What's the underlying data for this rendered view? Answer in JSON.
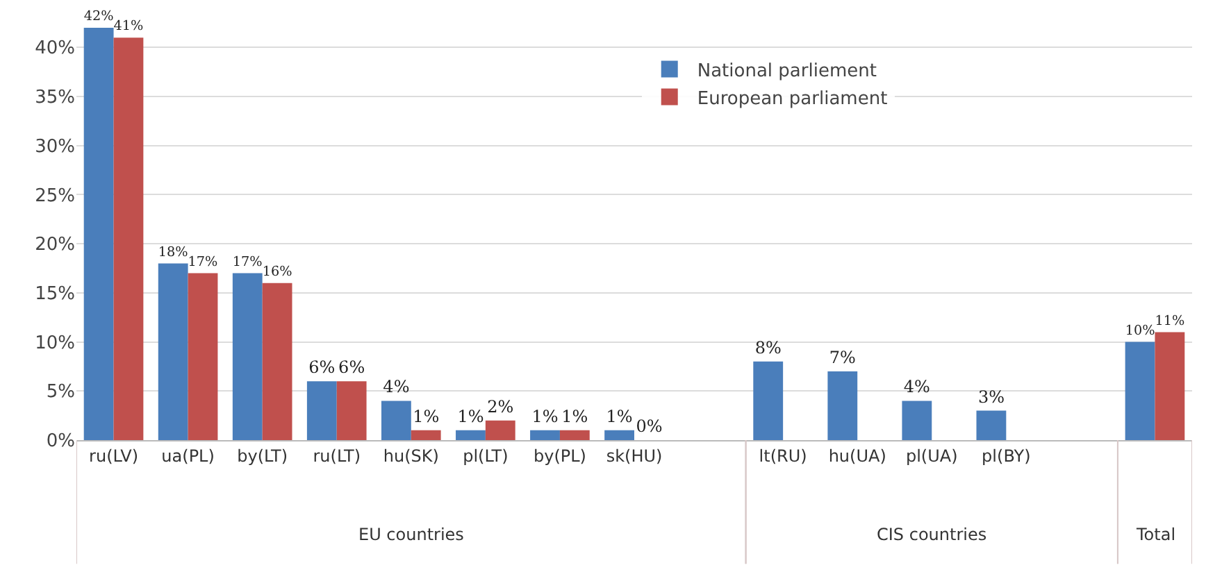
{
  "chart_data": {
    "type": "bar",
    "categories": [
      "ru(LV)",
      "ua(PL)",
      "by(LT)",
      "ru(LT)",
      "hu(SK)",
      "pl(LT)",
      "by(PL)",
      "sk(HU)",
      null,
      "lt(RU)",
      "hu(UA)",
      "pl(UA)",
      "pl(BY)",
      null,
      null
    ],
    "series": [
      {
        "name": "National parliement",
        "color": "#4a7ebb",
        "values": [
          42,
          18,
          17,
          6,
          4,
          1,
          1,
          1,
          null,
          8,
          7,
          4,
          3,
          null,
          10
        ],
        "value_labels": [
          "42%",
          "18%",
          "17%",
          "6%",
          "4%",
          "1%",
          "1%",
          "1%",
          null,
          "8%",
          "7%",
          "4%",
          "3%",
          null,
          "10%"
        ]
      },
      {
        "name": "European parliament",
        "color": "#c0504d",
        "values": [
          41,
          17,
          16,
          6,
          1,
          2,
          1,
          0,
          null,
          null,
          null,
          null,
          null,
          null,
          11
        ],
        "value_labels": [
          "41%",
          "17%",
          "16%",
          "6%",
          "1%",
          "2%",
          "1%",
          "0%",
          null,
          null,
          null,
          null,
          null,
          null,
          "11%"
        ]
      }
    ],
    "ylim": [
      0,
      42
    ],
    "yticks": [
      {
        "value": 0,
        "label": "0%"
      },
      {
        "value": 5,
        "label": "5%"
      },
      {
        "value": 10,
        "label": "10%"
      },
      {
        "value": 15,
        "label": "15%"
      },
      {
        "value": 20,
        "label": "20%"
      },
      {
        "value": 25,
        "label": "25%"
      },
      {
        "value": 30,
        "label": "30%"
      },
      {
        "value": 35,
        "label": "35%"
      },
      {
        "value": 40,
        "label": "40%"
      }
    ],
    "grid": "y",
    "legend": "top",
    "annotations": [
      "EU countries",
      "CIS countries",
      "Total"
    ]
  }
}
